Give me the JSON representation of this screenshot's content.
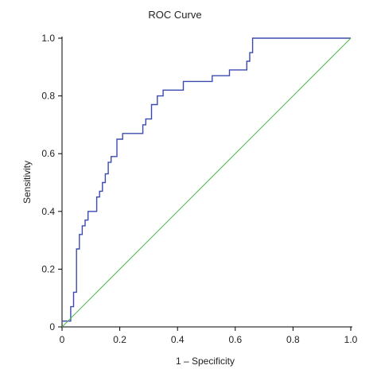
{
  "chart_data": {
    "type": "line",
    "title": "ROC Curve",
    "xlabel": "1 – Specificity",
    "ylabel": "Sensitivity",
    "xlim": [
      0,
      1
    ],
    "ylim": [
      0,
      1
    ],
    "xticks": [
      "0",
      "0.2",
      "0.4",
      "0.6",
      "0.8",
      "1.0"
    ],
    "yticks": [
      "0",
      "0.2",
      "0.4",
      "0.6",
      "0.8",
      "1.0"
    ],
    "grid": false,
    "legend": "none",
    "series": [
      {
        "color": "#3a4bb0",
        "step": true,
        "x": [
          0,
          0.03,
          0.03,
          0.04,
          0.04,
          0.05,
          0.05,
          0.06,
          0.06,
          0.07,
          0.07,
          0.08,
          0.08,
          0.09,
          0.09,
          0.12,
          0.12,
          0.13,
          0.13,
          0.14,
          0.14,
          0.15,
          0.15,
          0.16,
          0.16,
          0.17,
          0.17,
          0.19,
          0.19,
          0.21,
          0.21,
          0.28,
          0.28,
          0.29,
          0.29,
          0.31,
          0.31,
          0.33,
          0.33,
          0.35,
          0.35,
          0.42,
          0.42,
          0.52,
          0.52,
          0.58,
          0.58,
          0.64,
          0.64,
          0.65,
          0.65,
          0.66,
          0.66,
          1.0
        ],
        "y": [
          0.02,
          0.02,
          0.07,
          0.07,
          0.12,
          0.12,
          0.27,
          0.27,
          0.32,
          0.32,
          0.35,
          0.35,
          0.37,
          0.37,
          0.4,
          0.4,
          0.45,
          0.45,
          0.47,
          0.47,
          0.5,
          0.5,
          0.53,
          0.53,
          0.57,
          0.57,
          0.59,
          0.59,
          0.65,
          0.65,
          0.67,
          0.67,
          0.7,
          0.7,
          0.72,
          0.72,
          0.77,
          0.77,
          0.8,
          0.8,
          0.82,
          0.82,
          0.85,
          0.85,
          0.87,
          0.87,
          0.89,
          0.89,
          0.92,
          0.92,
          0.95,
          0.95,
          1.0,
          1.0
        ]
      },
      {
        "color": "#4cb84c",
        "step": false,
        "x": [
          0,
          1
        ],
        "y": [
          0,
          1
        ]
      }
    ]
  }
}
